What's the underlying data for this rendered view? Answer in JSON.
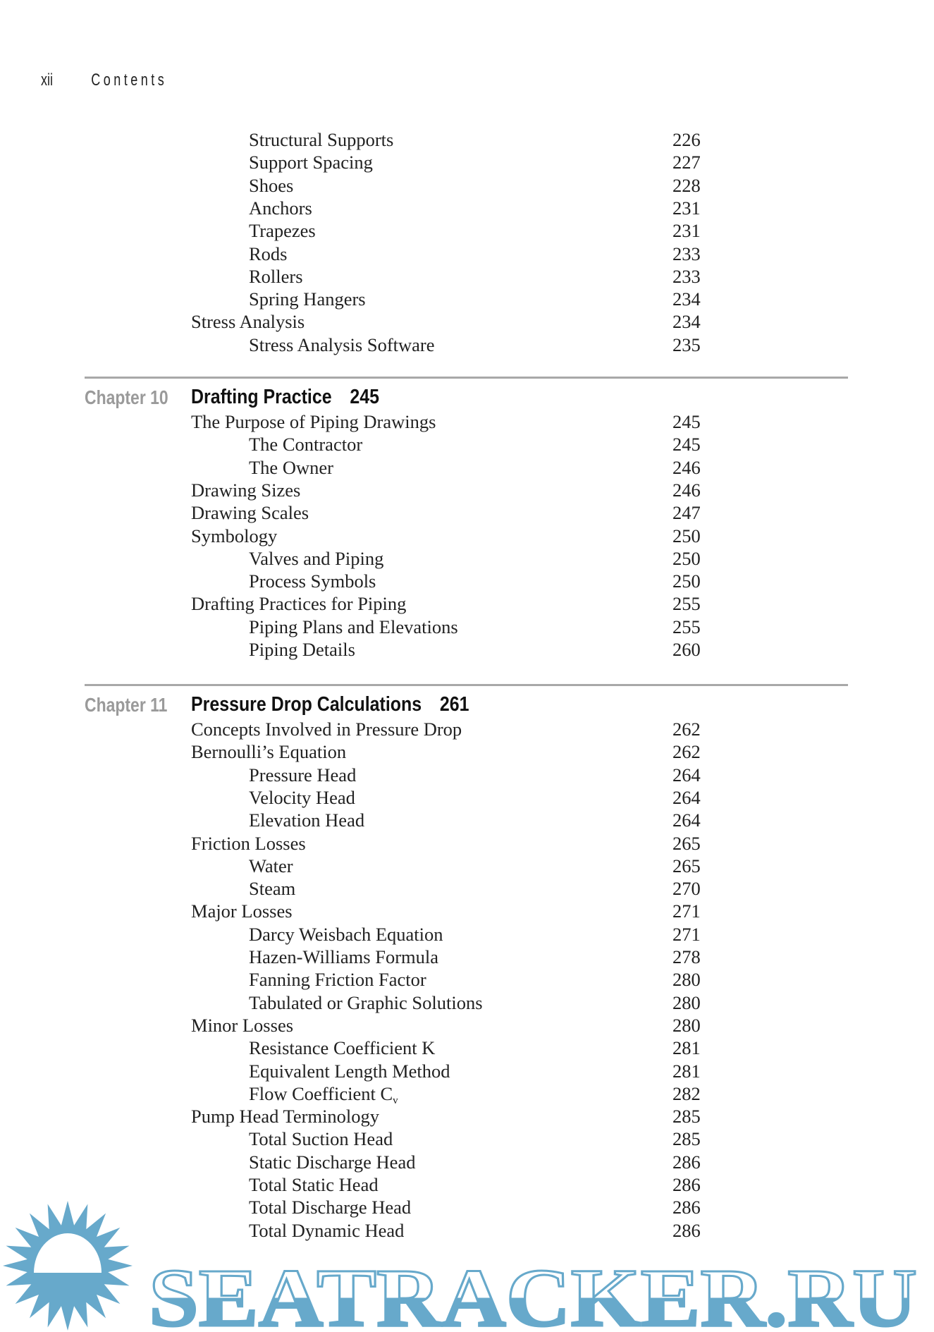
{
  "running_head": {
    "folio": "xii",
    "title": "Contents"
  },
  "sections": [
    {
      "chapter_label": null,
      "chapter_title": null,
      "chapter_page": null,
      "entries": [
        {
          "level": 2,
          "title": "Structural Supports",
          "page": "226"
        },
        {
          "level": 2,
          "title": "Support Spacing",
          "page": "227"
        },
        {
          "level": 2,
          "title": "Shoes",
          "page": "228"
        },
        {
          "level": 2,
          "title": "Anchors",
          "page": "231"
        },
        {
          "level": 2,
          "title": "Trapezes",
          "page": "231"
        },
        {
          "level": 2,
          "title": "Rods",
          "page": "233"
        },
        {
          "level": 2,
          "title": "Rollers",
          "page": "233"
        },
        {
          "level": 2,
          "title": "Spring Hangers",
          "page": "234"
        },
        {
          "level": 1,
          "title": "Stress Analysis",
          "page": "234"
        },
        {
          "level": 2,
          "title": "Stress Analysis Software",
          "page": "235"
        }
      ]
    },
    {
      "chapter_label": "Chapter 10",
      "chapter_title": "Drafting Practice",
      "chapter_page": "245",
      "entries": [
        {
          "level": 1,
          "title": "The Purpose of Piping Drawings",
          "page": "245"
        },
        {
          "level": 2,
          "title": "The Contractor",
          "page": "245"
        },
        {
          "level": 2,
          "title": "The Owner",
          "page": "246"
        },
        {
          "level": 1,
          "title": "Drawing Sizes",
          "page": "246"
        },
        {
          "level": 1,
          "title": "Drawing Scales",
          "page": "247"
        },
        {
          "level": 1,
          "title": "Symbology",
          "page": "250"
        },
        {
          "level": 2,
          "title": "Valves and Piping",
          "page": "250"
        },
        {
          "level": 2,
          "title": "Process Symbols",
          "page": "250"
        },
        {
          "level": 1,
          "title": "Drafting Practices for Piping",
          "page": "255"
        },
        {
          "level": 2,
          "title": "Piping Plans and Elevations",
          "page": "255"
        },
        {
          "level": 2,
          "title": "Piping Details",
          "page": "260"
        }
      ]
    },
    {
      "chapter_label": "Chapter 11",
      "chapter_title": "Pressure Drop Calculations",
      "chapter_page": "261",
      "entries": [
        {
          "level": 1,
          "title": "Concepts Involved in Pressure Drop",
          "page": "262"
        },
        {
          "level": 1,
          "title": "Bernoulli’s Equation",
          "page": "262"
        },
        {
          "level": 2,
          "title": "Pressure Head",
          "page": "264"
        },
        {
          "level": 2,
          "title": "Velocity Head",
          "page": "264"
        },
        {
          "level": 2,
          "title": "Elevation Head",
          "page": "264"
        },
        {
          "level": 1,
          "title": "Friction Losses",
          "page": "265"
        },
        {
          "level": 2,
          "title": "Water",
          "page": "265"
        },
        {
          "level": 2,
          "title": "Steam",
          "page": "270"
        },
        {
          "level": 1,
          "title": "Major Losses",
          "page": "271"
        },
        {
          "level": 2,
          "title": "Darcy Weisbach Equation",
          "page": "271"
        },
        {
          "level": 2,
          "title": "Hazen-Williams Formula",
          "page": "278"
        },
        {
          "level": 2,
          "title": "Fanning Friction Factor",
          "page": "280"
        },
        {
          "level": 2,
          "title": "Tabulated or Graphic Solutions",
          "page": "280"
        },
        {
          "level": 1,
          "title": "Minor Losses",
          "page": "280"
        },
        {
          "level": 2,
          "title": "Resistance Coefficient K",
          "page": "281"
        },
        {
          "level": 2,
          "title": "Equivalent Length Method",
          "page": "281"
        },
        {
          "level": 2,
          "title": "Flow Coefficient C",
          "sub": "v",
          "page": "282"
        },
        {
          "level": 1,
          "title": "Pump Head Terminology",
          "page": "285"
        },
        {
          "level": 2,
          "title": "Total Suction Head",
          "page": "285"
        },
        {
          "level": 2,
          "title": "Static Discharge Head",
          "page": "286"
        },
        {
          "level": 2,
          "title": "Total Static Head",
          "page": "286"
        },
        {
          "level": 2,
          "title": "Total Discharge Head",
          "page": "286"
        },
        {
          "level": 2,
          "title": "Total Dynamic Head",
          "page": "286"
        }
      ]
    }
  ],
  "watermark": {
    "text": "SEATRACKER.RU",
    "color": "#67a9cb"
  }
}
